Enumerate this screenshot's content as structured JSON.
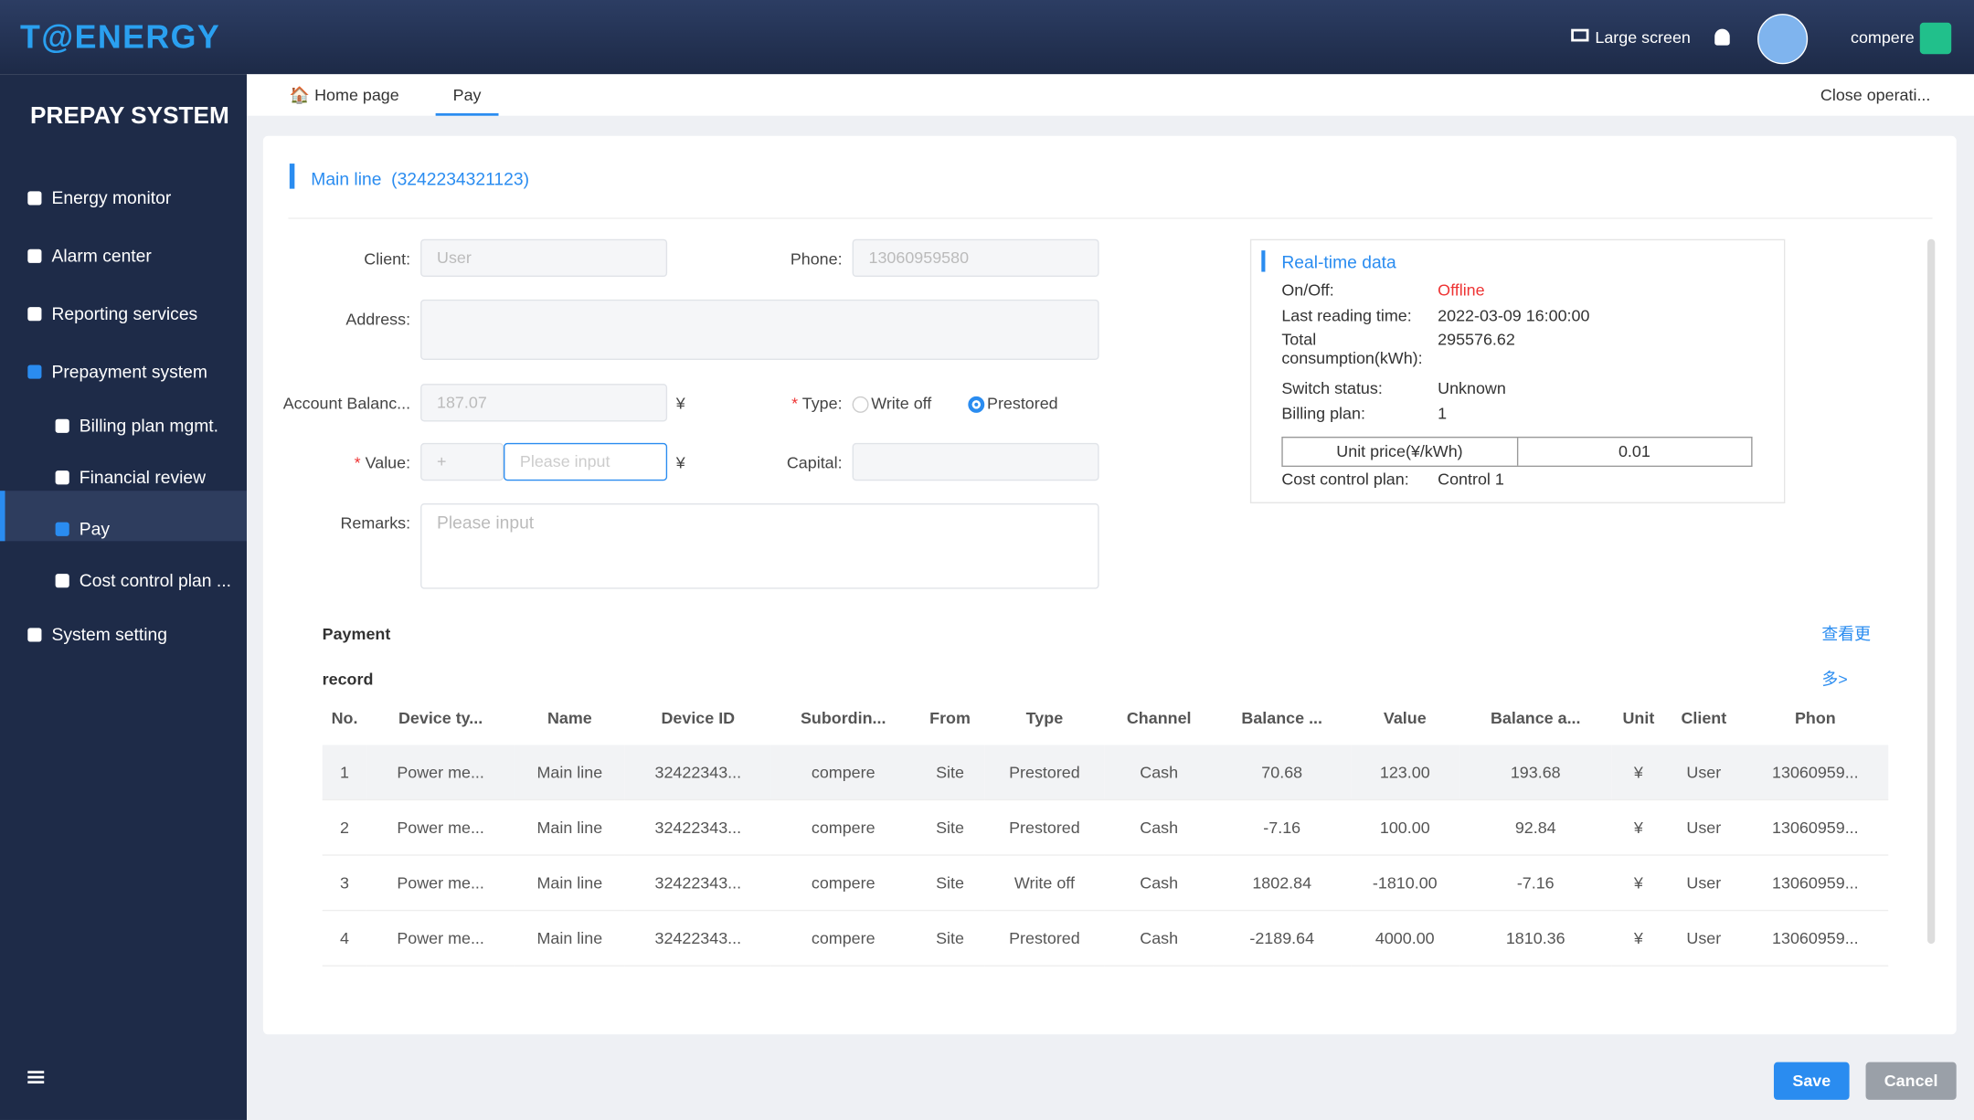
{
  "header": {
    "logo": "T@ENERGY",
    "large_screen": "Large screen",
    "user": "compere"
  },
  "sidebar": {
    "title": "PREPAY SYSTEM",
    "menu": [
      "Energy monitor",
      "Alarm center",
      "Reporting services",
      "Prepayment system",
      "Billing plan mgmt.",
      "Financial review",
      "Pay",
      "Cost control plan ...",
      "System setting"
    ]
  },
  "tabs": {
    "home": "Home page",
    "pay": "Pay",
    "close": "Close operati..."
  },
  "section": {
    "title": "Main line",
    "id": "(3242234321123)"
  },
  "form": {
    "client_label": "Client:",
    "client": "User",
    "phone_label": "Phone:",
    "phone": "13060959580",
    "address_label": "Address:",
    "balance_label": "Account Balanc...",
    "balance": "187.07",
    "currency": "¥",
    "type_label": "Type:",
    "type_options": [
      "Write off",
      "Prestored"
    ],
    "value_label": "Value:",
    "value_sign": "+",
    "placeholder": "Please input",
    "capital_label": "Capital:",
    "remarks_label": "Remarks:"
  },
  "realtime": {
    "title": "Real-time data",
    "rows": [
      [
        "On/Off:",
        "Offline"
      ],
      [
        "Last reading time:",
        "2022-03-09 16:00:00"
      ],
      [
        "Total consumption(kWh):",
        "295576.62"
      ],
      [
        "Switch status:",
        "Unknown"
      ],
      [
        "Billing plan:",
        "1"
      ]
    ],
    "unit_price_label": "Unit price(¥/kWh)",
    "unit_price": "0.01",
    "cost_label": "Cost control plan:",
    "cost": "Control 1"
  },
  "payment": {
    "title": "Payment record",
    "more": "查看更多>"
  },
  "table": {
    "headers": [
      "No.",
      "Device ty...",
      "Name",
      "Device ID",
      "Subordin...",
      "From",
      "Type",
      "Channel",
      "Balance ...",
      "Value",
      "Balance a...",
      "Unit",
      "Client",
      "Phon"
    ],
    "rows": [
      [
        "1",
        "Power me...",
        "Main line",
        "32422343...",
        "compere",
        "Site",
        "Prestored",
        "Cash",
        "70.68",
        "123.00",
        "193.68",
        "¥",
        "User",
        "13060959..."
      ],
      [
        "2",
        "Power me...",
        "Main line",
        "32422343...",
        "compere",
        "Site",
        "Prestored",
        "Cash",
        "-7.16",
        "100.00",
        "92.84",
        "¥",
        "User",
        "13060959..."
      ],
      [
        "3",
        "Power me...",
        "Main line",
        "32422343...",
        "compere",
        "Site",
        "Write off",
        "Cash",
        "1802.84",
        "-1810.00",
        "-7.16",
        "¥",
        "User",
        "13060959..."
      ],
      [
        "4",
        "Power me...",
        "Main line",
        "32422343...",
        "compere",
        "Site",
        "Prestored",
        "Cash",
        "-2189.64",
        "4000.00",
        "1810.36",
        "¥",
        "User",
        "13060959..."
      ]
    ]
  },
  "buttons": {
    "save": "Save",
    "cancel": "Cancel"
  }
}
